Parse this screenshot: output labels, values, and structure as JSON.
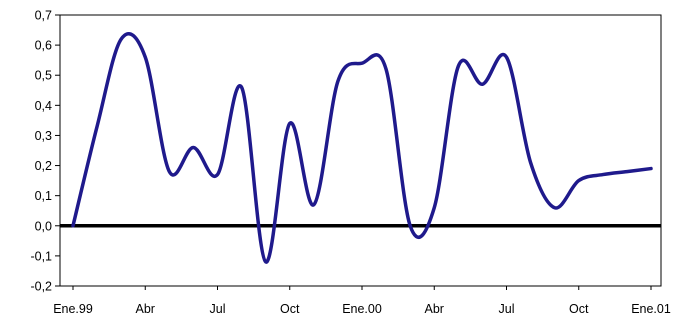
{
  "chart_data": {
    "type": "line",
    "title": "",
    "xlabel": "",
    "ylabel": "",
    "x_tick_labels": [
      "Ene.99",
      "Abr",
      "Jul",
      "Oct",
      "Ene.00",
      "Abr",
      "Jul",
      "Oct",
      "Ene.01"
    ],
    "y_tick_labels": [
      "-0,2",
      "-0,1",
      "0,0",
      "0,1",
      "0,2",
      "0,3",
      "0,4",
      "0,5",
      "0,6",
      "0,7"
    ],
    "y_ticks": [
      -0.2,
      -0.1,
      0.0,
      0.1,
      0.2,
      0.3,
      0.4,
      0.5,
      0.6,
      0.7
    ],
    "ylim": [
      -0.2,
      0.7
    ],
    "xlim": [
      0,
      24
    ],
    "grid": false,
    "legend": "none",
    "series": [
      {
        "color": "#1f1a8c",
        "x": [
          0,
          1,
          2,
          3,
          4,
          5,
          6,
          7,
          8,
          9,
          10,
          11,
          12,
          13,
          14,
          15,
          16,
          17,
          18,
          19,
          20,
          21,
          22,
          23,
          24
        ],
        "y": [
          0.0,
          0.33,
          0.62,
          0.56,
          0.18,
          0.26,
          0.17,
          0.46,
          -0.12,
          0.34,
          0.07,
          0.48,
          0.54,
          0.52,
          0.0,
          0.06,
          0.53,
          0.47,
          0.56,
          0.21,
          0.06,
          0.15,
          0.17,
          0.18,
          0.19
        ]
      }
    ],
    "zero_line": 0.0
  },
  "colors": {
    "line": "#1f1a8c",
    "axis": "#000000",
    "zero_line": "#000000"
  }
}
